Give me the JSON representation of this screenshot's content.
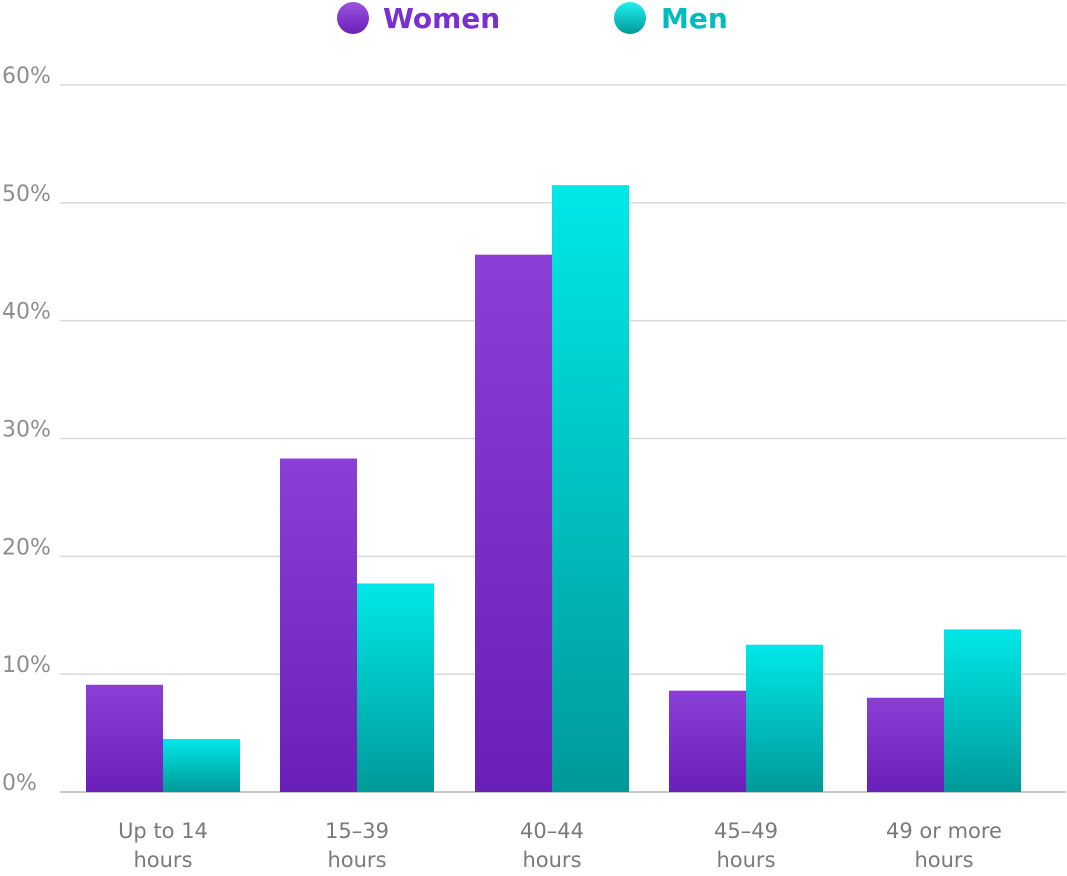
{
  "chart_data": {
    "type": "bar",
    "title": "",
    "xlabel": "",
    "ylabel": "",
    "categories": [
      [
        "Up to 14",
        "hours"
      ],
      [
        "15–39",
        "hours"
      ],
      [
        "40–44",
        "hours"
      ],
      [
        "45–49",
        "hours"
      ],
      [
        "49 or more",
        "hours"
      ]
    ],
    "series": [
      {
        "name": "Women",
        "color": "#7a2fd0",
        "values": [
          9.1,
          28.3,
          45.6,
          8.6,
          8.0
        ]
      },
      {
        "name": "Men",
        "color": "#00c9c9",
        "values": [
          4.5,
          17.7,
          51.5,
          12.5,
          13.8
        ]
      }
    ],
    "ylim": [
      0,
      60
    ],
    "yticks": [
      "0%",
      "10%",
      "20%",
      "30%",
      "40%",
      "50%",
      "60%"
    ],
    "grid": true,
    "legend_position": "top-center"
  }
}
